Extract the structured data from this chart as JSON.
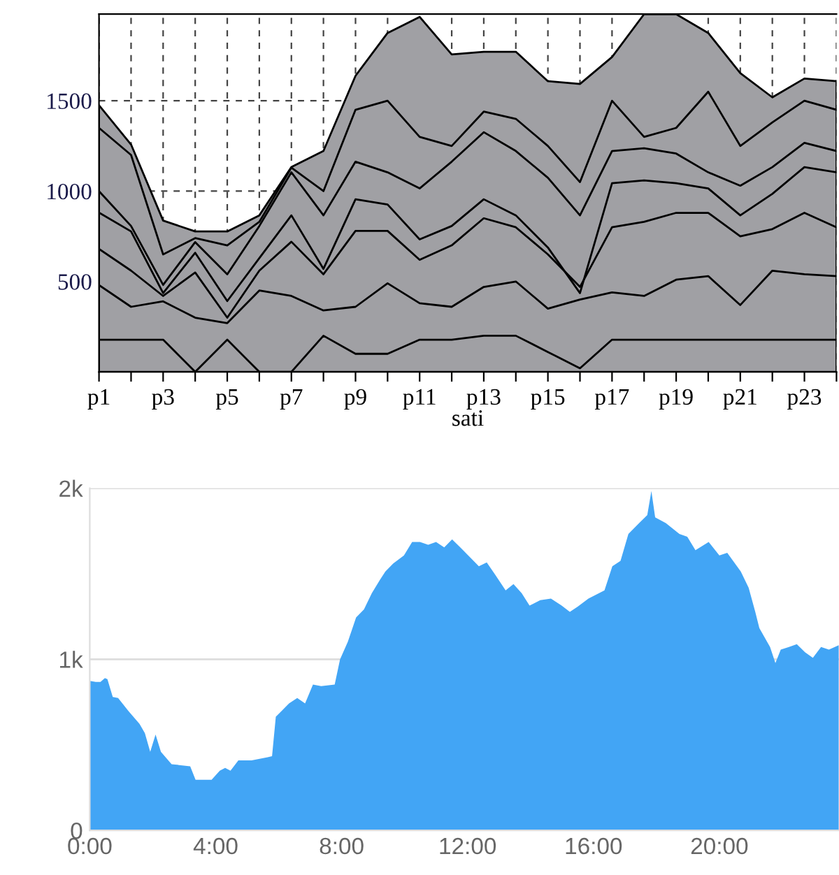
{
  "chart_data": [
    {
      "type": "line",
      "xlabel": "sati",
      "categories": [
        "p1",
        null,
        "p3",
        null,
        "p5",
        null,
        "p7",
        null,
        "p9",
        null,
        "p11",
        null,
        "p13",
        null,
        "p15",
        null,
        "p17",
        null,
        "p19",
        null,
        "p21",
        null,
        "p23",
        null
      ],
      "ylim": [
        0,
        1980
      ],
      "yticks": [
        500,
        1000,
        1500
      ],
      "grid": true,
      "series": [
        {
          "type": "area",
          "color": "#a0a0a4",
          "values": [
            1475,
            1258,
            837,
            777,
            777,
            866,
            1133,
            1222,
            1638,
            1875,
            1964,
            1756,
            1771,
            1771,
            1608,
            1593,
            1742,
            1979,
            1979,
            1875,
            1653,
            1519,
            1623,
            1608
          ]
        },
        {
          "type": "line",
          "color": "#000000",
          "values": [
            1350,
            1200,
            650,
            740,
            700,
            830,
            1130,
            1000,
            1450,
            1500,
            1300,
            1250,
            1440,
            1400,
            1250,
            1050,
            1500,
            1300,
            1350,
            1550,
            1250,
            1380,
            1500,
            1450
          ]
        },
        {
          "type": "line",
          "color": "#000000",
          "values": [
            1000,
            807,
            481,
            718,
            540,
            807,
            1104,
            866,
            1163,
            1104,
            1015,
            1163,
            1326,
            1222,
            1074,
            866,
            1222,
            1237,
            1208,
            1104,
            1030,
            1133,
            1267,
            1222
          ]
        },
        {
          "type": "line",
          "color": "#000000",
          "values": [
            881,
            777,
            436,
            659,
            392,
            629,
            866,
            570,
            955,
            926,
            733,
            807,
            955,
            866,
            688,
            436,
            1044,
            1059,
            1044,
            1015,
            866,
            985,
            1133,
            1104
          ]
        },
        {
          "type": "line",
          "color": "#000000",
          "values": [
            680,
            560,
            420,
            550,
            300,
            560,
            720,
            540,
            780,
            780,
            620,
            700,
            850,
            800,
            650,
            470,
            800,
            830,
            880,
            880,
            750,
            790,
            880,
            800
          ]
        },
        {
          "type": "line",
          "color": "#000000",
          "values": [
            480,
            360,
            390,
            300,
            270,
            450,
            420,
            340,
            360,
            490,
            380,
            360,
            470,
            500,
            350,
            400,
            440,
            420,
            510,
            530,
            370,
            560,
            540,
            530
          ]
        },
        {
          "type": "line",
          "color": "#000000",
          "values": [
            178,
            178,
            178,
            0,
            178,
            0,
            0,
            200,
            100,
            100,
            178,
            178,
            200,
            200,
            110,
            20,
            178,
            178,
            178,
            178,
            178,
            178,
            178,
            178
          ]
        }
      ]
    },
    {
      "type": "area",
      "color": "#42a5f5",
      "xlim": [
        0,
        23.8
      ],
      "xticks": [
        {
          "value": 0,
          "label": "0:00"
        },
        {
          "value": 4,
          "label": "4:00"
        },
        {
          "value": 8,
          "label": "8:00"
        },
        {
          "value": 12,
          "label": "12:00"
        },
        {
          "value": 16,
          "label": "16:00"
        },
        {
          "value": 20,
          "label": "20:00"
        }
      ],
      "ylim": [
        0,
        2000
      ],
      "yticks": [
        0,
        {
          "value": 1000,
          "label": "1k"
        },
        {
          "value": 2000,
          "label": "2k"
        }
      ],
      "grid": "y",
      "x": [
        0,
        0.19,
        0.34,
        0.48,
        0.56,
        0.73,
        0.9,
        1.24,
        1.58,
        1.75,
        1.92,
        2.09,
        2.26,
        2.6,
        2.94,
        3.19,
        3.36,
        3.87,
        4.13,
        4.3,
        4.47,
        4.72,
        5.14,
        5.65,
        5.79,
        5.91,
        6.33,
        6.59,
        6.84,
        7.09,
        7.35,
        7.78,
        7.95,
        8.2,
        8.46,
        8.71,
        8.96,
        9.22,
        9.39,
        9.64,
        9.98,
        10.24,
        10.49,
        10.75,
        11.0,
        11.26,
        11.51,
        11.77,
        12.11,
        12.36,
        12.61,
        12.87,
        13.21,
        13.46,
        13.72,
        13.97,
        14.31,
        14.65,
        14.99,
        15.25,
        15.5,
        15.84,
        16.35,
        16.6,
        16.86,
        17.11,
        17.45,
        17.71,
        17.84,
        17.96,
        18.3,
        18.73,
        18.98,
        19.24,
        19.66,
        20.0,
        20.25,
        20.68,
        20.93,
        21.14,
        21.27,
        21.61,
        21.78,
        21.95,
        22.21,
        22.46,
        22.72,
        22.97,
        23.23,
        23.48,
        23.79
      ],
      "values": [
        874,
        868,
        868,
        890,
        884,
        780,
        774,
        695,
        623,
        569,
        459,
        560,
        459,
        387,
        380,
        374,
        296,
        296,
        349,
        365,
        349,
        409,
        409,
        428,
        434,
        664,
        742,
        774,
        742,
        852,
        843,
        852,
        1000,
        1104,
        1245,
        1292,
        1387,
        1465,
        1513,
        1560,
        1607,
        1686,
        1686,
        1670,
        1686,
        1654,
        1701,
        1654,
        1591,
        1544,
        1566,
        1497,
        1403,
        1440,
        1387,
        1314,
        1346,
        1355,
        1314,
        1277,
        1308,
        1355,
        1403,
        1544,
        1576,
        1733,
        1796,
        1843,
        1984,
        1830,
        1796,
        1733,
        1717,
        1638,
        1686,
        1607,
        1623,
        1513,
        1418,
        1277,
        1182,
        1072,
        978,
        1057,
        1072,
        1088,
        1041,
        1009,
        1072,
        1057,
        1082
      ]
    }
  ]
}
